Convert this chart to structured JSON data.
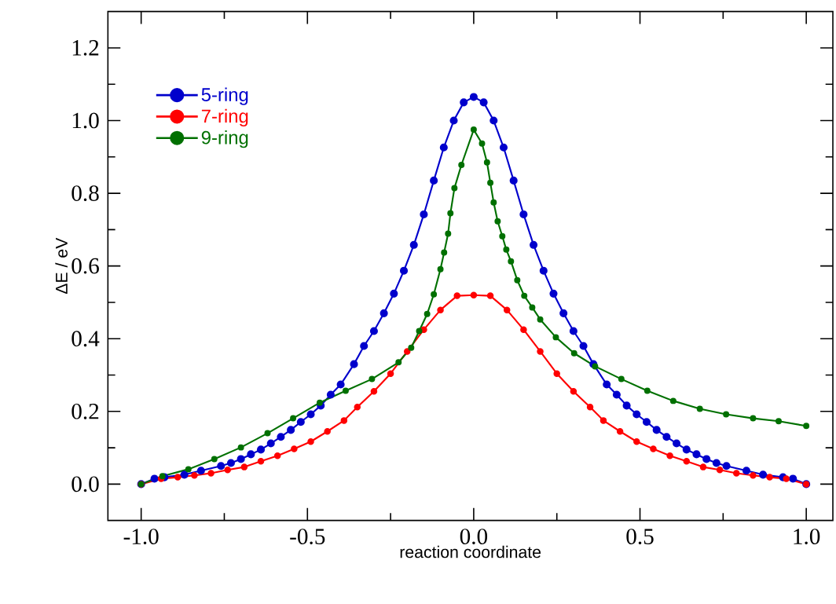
{
  "chart_data": {
    "type": "line",
    "xlabel": "reaction coordinate",
    "ylabel": "ΔE / eV",
    "xlim": [
      -1.1,
      1.08
    ],
    "ylim": [
      -0.1,
      1.3
    ],
    "xticks": [
      {
        "value": -1.0,
        "label": "-1.0"
      },
      {
        "value": -0.5,
        "label": "-0.5"
      },
      {
        "value": 0.0,
        "label": "0.0"
      },
      {
        "value": 0.5,
        "label": "0.5"
      },
      {
        "value": 1.0,
        "label": "1.0"
      }
    ],
    "yticks": [
      {
        "value": 0.0,
        "label": "0.0"
      },
      {
        "value": 0.2,
        "label": "0.2"
      },
      {
        "value": 0.4,
        "label": "0.4"
      },
      {
        "value": 0.6,
        "label": "0.6"
      },
      {
        "value": 0.8,
        "label": "0.8"
      },
      {
        "value": 1.0,
        "label": "1.0"
      },
      {
        "value": 1.2,
        "label": "1.2"
      }
    ],
    "grid": false,
    "legend": "top left",
    "marker": "circle",
    "line_style": "solid",
    "series": [
      {
        "name": "5-ring",
        "color": "#0000cc",
        "x": [
          -1.0,
          -0.96,
          -0.93,
          -0.87,
          -0.82,
          -0.76,
          -0.73,
          -0.7,
          -0.67,
          -0.64,
          -0.61,
          -0.58,
          -0.55,
          -0.52,
          -0.49,
          -0.46,
          -0.43,
          -0.4,
          -0.36,
          -0.33,
          -0.3,
          -0.27,
          -0.24,
          -0.21,
          -0.18,
          -0.15,
          -0.12,
          -0.09,
          -0.06,
          -0.03,
          0.0,
          0.03,
          0.06,
          0.09,
          0.12,
          0.15,
          0.18,
          0.21,
          0.24,
          0.27,
          0.3,
          0.33,
          0.36,
          0.4,
          0.43,
          0.46,
          0.49,
          0.52,
          0.55,
          0.58,
          0.61,
          0.64,
          0.67,
          0.7,
          0.73,
          0.76,
          0.82,
          0.87,
          0.93,
          0.96,
          1.0
        ],
        "values": [
          0.0,
          0.015,
          0.019,
          0.026,
          0.037,
          0.05,
          0.058,
          0.069,
          0.082,
          0.095,
          0.112,
          0.13,
          0.149,
          0.171,
          0.192,
          0.216,
          0.246,
          0.274,
          0.33,
          0.38,
          0.421,
          0.47,
          0.524,
          0.587,
          0.658,
          0.742,
          0.835,
          0.926,
          1.0,
          1.05,
          1.065,
          1.05,
          1.0,
          0.926,
          0.835,
          0.742,
          0.658,
          0.587,
          0.524,
          0.47,
          0.421,
          0.38,
          0.33,
          0.274,
          0.246,
          0.216,
          0.192,
          0.171,
          0.149,
          0.13,
          0.112,
          0.095,
          0.082,
          0.069,
          0.058,
          0.05,
          0.037,
          0.026,
          0.019,
          0.015,
          0.0
        ]
      },
      {
        "name": "7-ring",
        "color": "#ff0000",
        "x": [
          -1.0,
          -0.94,
          -0.89,
          -0.84,
          -0.79,
          -0.74,
          -0.69,
          -0.64,
          -0.59,
          -0.54,
          -0.49,
          -0.44,
          -0.39,
          -0.35,
          -0.3,
          -0.25,
          -0.2,
          -0.15,
          -0.1,
          -0.05,
          0.0,
          0.05,
          0.1,
          0.15,
          0.2,
          0.25,
          0.3,
          0.35,
          0.39,
          0.44,
          0.49,
          0.54,
          0.59,
          0.64,
          0.69,
          0.74,
          0.79,
          0.84,
          0.89,
          0.94,
          1.0
        ],
        "values": [
          0.0,
          0.015,
          0.019,
          0.024,
          0.03,
          0.039,
          0.047,
          0.063,
          0.078,
          0.097,
          0.117,
          0.145,
          0.175,
          0.212,
          0.255,
          0.304,
          0.365,
          0.425,
          0.479,
          0.518,
          0.52,
          0.518,
          0.479,
          0.425,
          0.365,
          0.304,
          0.255,
          0.212,
          0.175,
          0.145,
          0.117,
          0.097,
          0.078,
          0.063,
          0.047,
          0.039,
          0.03,
          0.024,
          0.019,
          0.015,
          0.0
        ]
      },
      {
        "name": "9-ring",
        "color": "#007000",
        "x": [
          -1.0,
          -0.936,
          -0.858,
          -0.78,
          -0.7,
          -0.62,
          -0.543,
          -0.463,
          -0.385,
          -0.306,
          -0.226,
          -0.188,
          -0.164,
          -0.14,
          -0.12,
          -0.1,
          -0.089,
          -0.077,
          -0.07,
          -0.058,
          -0.037,
          0.0,
          0.025,
          0.04,
          0.05,
          0.06,
          0.072,
          0.086,
          0.098,
          0.112,
          0.131,
          0.152,
          0.176,
          0.2,
          0.247,
          0.302,
          0.365,
          0.444,
          0.522,
          0.6,
          0.68,
          0.759,
          0.84,
          0.917,
          1.0
        ],
        "values": [
          0.0,
          0.022,
          0.041,
          0.069,
          0.101,
          0.14,
          0.181,
          0.224,
          0.257,
          0.289,
          0.335,
          0.375,
          0.421,
          0.468,
          0.522,
          0.591,
          0.637,
          0.689,
          0.745,
          0.814,
          0.878,
          0.975,
          0.937,
          0.885,
          0.829,
          0.775,
          0.723,
          0.682,
          0.645,
          0.613,
          0.561,
          0.518,
          0.486,
          0.453,
          0.404,
          0.36,
          0.324,
          0.289,
          0.257,
          0.229,
          0.207,
          0.192,
          0.181,
          0.173,
          0.16
        ]
      }
    ]
  }
}
